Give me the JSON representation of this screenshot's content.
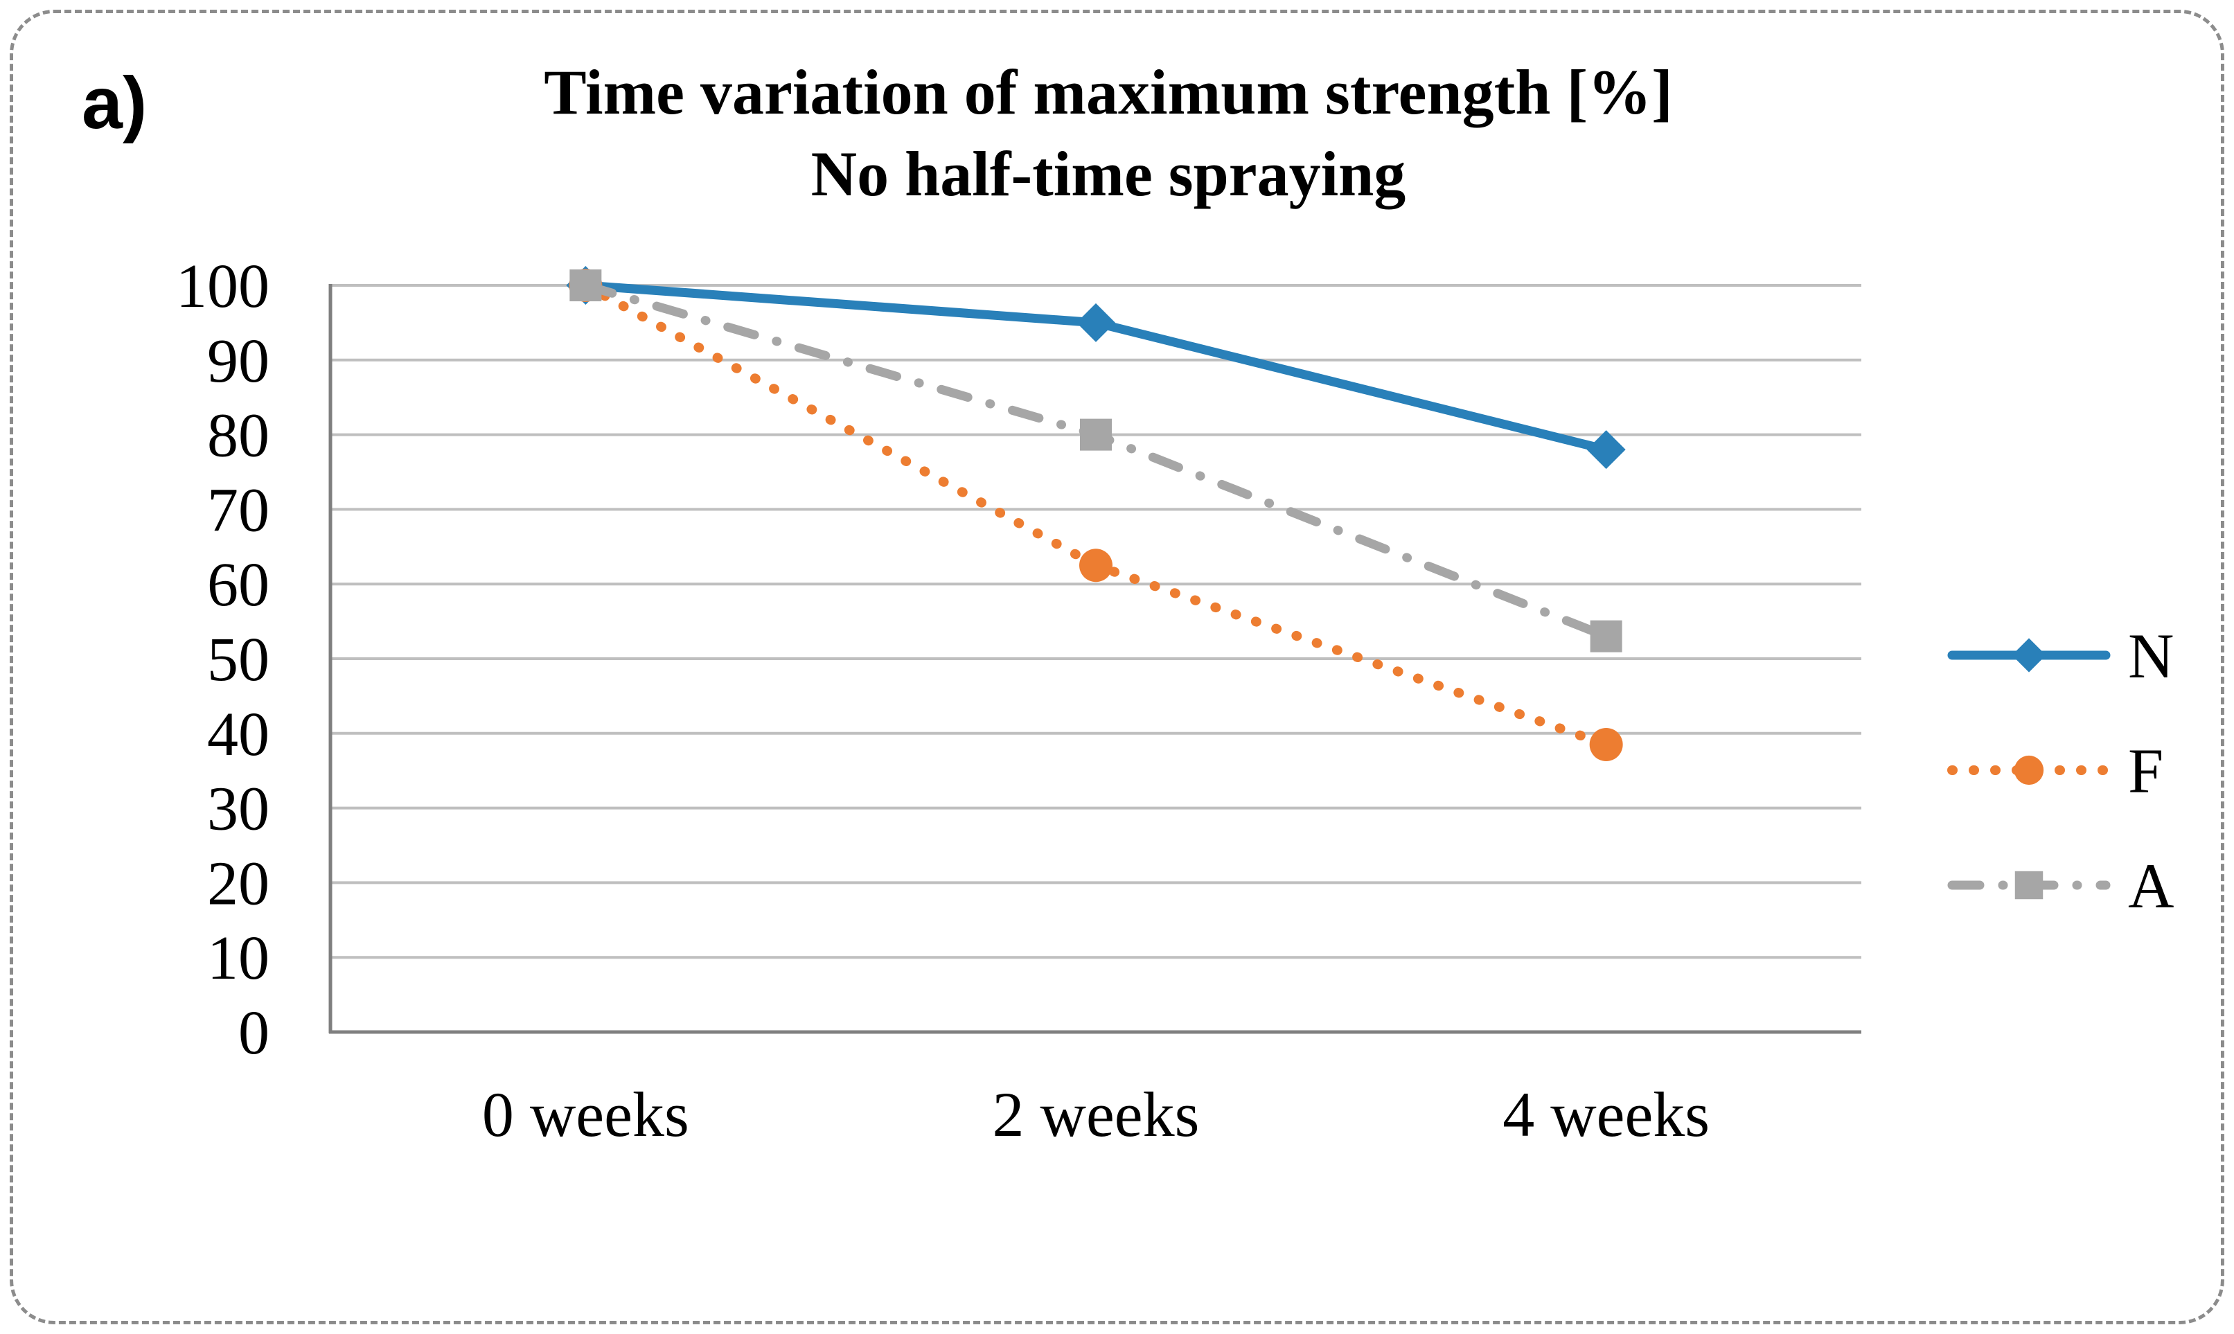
{
  "figure": {
    "panel_label": "a)",
    "style": {
      "background": "#FFFFFF",
      "border_color": "#8C8C8C",
      "grid_color": "#BFBFBF",
      "axis_color": "#7F7F7F",
      "text_color": "#000000"
    }
  },
  "chart_data": {
    "type": "line",
    "title": "Time variation of maximum strength [%]",
    "subtitle": "No half-time spraying",
    "categories": [
      "0 weeks",
      "2 weeks",
      "4 weeks"
    ],
    "series": [
      {
        "name": "N",
        "values": [
          100,
          95,
          78
        ],
        "color": "#2980B9",
        "line_style": "solid",
        "marker": "diamond"
      },
      {
        "name": "F",
        "values": [
          100,
          62.5,
          38.5
        ],
        "color": "#ED7D31",
        "line_style": "dotted",
        "marker": "circle"
      },
      {
        "name": "A",
        "values": [
          100,
          80,
          53
        ],
        "color": "#A6A6A6",
        "line_style": "dash-dot",
        "marker": "square"
      }
    ],
    "ylim": [
      0,
      100
    ],
    "ytick_step": 10,
    "yticks": [
      0,
      10,
      20,
      30,
      40,
      50,
      60,
      70,
      80,
      90,
      100
    ],
    "grid": "horizontal",
    "legend_position": "right",
    "legend_labels": [
      "N",
      "F",
      "A"
    ]
  }
}
